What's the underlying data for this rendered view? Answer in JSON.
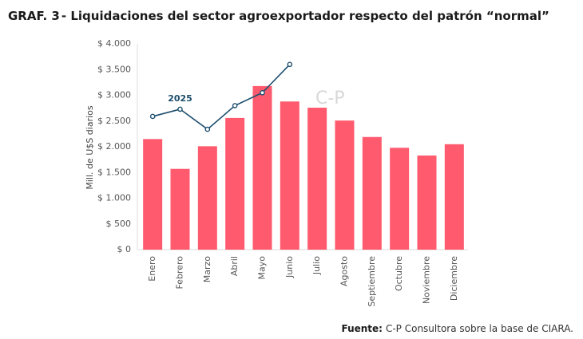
{
  "chart_data": {
    "type": "bar_line",
    "title_prefix": "GRAF. 3",
    "title": "- Liquidaciones del sector agroexportador respecto del patrón “normal”",
    "y_label": "Mill. de U$S diarios",
    "watermark": "C-P",
    "source_label": "Fuente:",
    "source": "C-P Consultora sobre la base de CIARA.",
    "categories": [
      "Enero",
      "Febrero",
      "Marzo",
      "Abril",
      "Mayo",
      "Junio",
      "Julio",
      "Agosto",
      "Septiembre",
      "Octubre",
      "Noviembre",
      "Diciembre"
    ],
    "series": [
      {
        "type": "bar",
        "color": "#ff5a6e",
        "values": [
          2150,
          1570,
          2010,
          2560,
          3180,
          2880,
          2760,
          2510,
          2190,
          1980,
          1830,
          2050
        ]
      },
      {
        "type": "line",
        "name": "2025",
        "color": "#1d4e6e",
        "values": [
          2590,
          2730,
          2340,
          2800,
          3050,
          3600,
          null,
          null,
          null,
          null,
          null,
          null
        ]
      }
    ],
    "ylim": [
      0,
      4000
    ],
    "yticks": [
      {
        "value": 0,
        "label": "$ 0"
      },
      {
        "value": 500,
        "label": "$ 500"
      },
      {
        "value": 1000,
        "label": "$ 1.000"
      },
      {
        "value": 1500,
        "label": "$ 1.500"
      },
      {
        "value": 2000,
        "label": "$ 2.000"
      },
      {
        "value": 2500,
        "label": "$ 2.500"
      },
      {
        "value": 3000,
        "label": "$ 3.000"
      },
      {
        "value": 3500,
        "label": "$ 3.500"
      },
      {
        "value": 4000,
        "label": "$ 4.000"
      }
    ]
  }
}
